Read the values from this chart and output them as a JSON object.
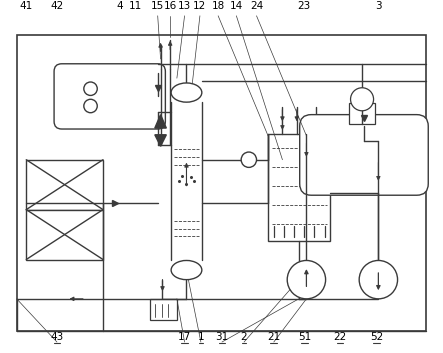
{
  "bg_color": "#ffffff",
  "line_color": "#3a3a3a",
  "lw": 1.0,
  "fig_w": 4.43,
  "fig_h": 3.53,
  "dpi": 100
}
